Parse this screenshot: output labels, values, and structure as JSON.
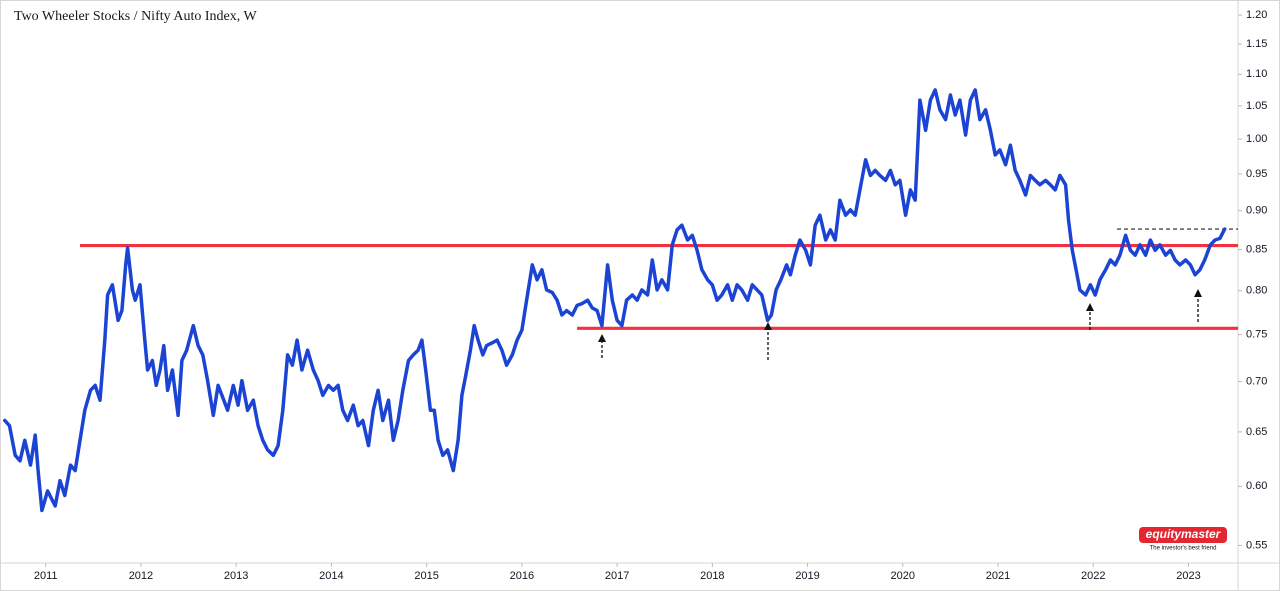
{
  "chart_data": {
    "type": "line",
    "title": "Two Wheeler Stocks / Nifty Auto Index, W",
    "log_scale": true,
    "grid": false,
    "color": "#1c44d4",
    "xlim": [
      2010.52,
      2023.52
    ],
    "ylim": [
      0.536,
      1.227
    ],
    "xticks": [
      2011,
      2012,
      2013,
      2014,
      2015,
      2016,
      2017,
      2018,
      2019,
      2020,
      2021,
      2022,
      2023
    ],
    "yticks": [
      0.55,
      {
        "value": 0.6,
        "label": "0.60"
      },
      0.65,
      {
        "value": 0.7,
        "label": "0.70"
      },
      0.75,
      {
        "value": 0.8,
        "label": "0.80"
      },
      0.85,
      {
        "value": 0.9,
        "label": "0.90"
      },
      0.95,
      {
        "value": 1.0,
        "label": "1.00"
      },
      1.05,
      {
        "value": 1.1,
        "label": "1.10"
      },
      1.15,
      {
        "value": 1.2,
        "label": "1.20"
      }
    ],
    "x": [
      2010.57,
      2010.62,
      2010.68,
      2010.73,
      2010.78,
      2010.84,
      2010.89,
      2010.92,
      2010.96,
      2011.02,
      2011.1,
      2011.15,
      2011.2,
      2011.26,
      2011.31,
      2011.36,
      2011.41,
      2011.47,
      2011.52,
      2011.57,
      2011.62,
      2011.65,
      2011.7,
      2011.76,
      2011.8,
      2011.84,
      2011.86,
      2011.91,
      2011.94,
      2011.99,
      2012.04,
      2012.07,
      2012.12,
      2012.16,
      2012.2,
      2012.24,
      2012.28,
      2012.33,
      2012.39,
      2012.43,
      2012.48,
      2012.55,
      2012.6,
      2012.65,
      2012.7,
      2012.76,
      2012.81,
      2012.85,
      2012.91,
      2012.97,
      2013.02,
      2013.06,
      2013.12,
      2013.18,
      2013.23,
      2013.28,
      2013.33,
      2013.39,
      2013.44,
      2013.49,
      2013.54,
      2013.59,
      2013.64,
      2013.69,
      2013.75,
      2013.81,
      2013.86,
      2013.91,
      2013.97,
      2014.02,
      2014.07,
      2014.12,
      2014.17,
      2014.23,
      2014.28,
      2014.33,
      2014.39,
      2014.44,
      2014.49,
      2014.54,
      2014.6,
      2014.65,
      2014.7,
      2014.75,
      2014.81,
      2014.86,
      2014.91,
      2014.95,
      2014.99,
      2015.04,
      2015.08,
      2015.12,
      2015.17,
      2015.22,
      2015.28,
      2015.33,
      2015.37,
      2015.41,
      2015.46,
      2015.5,
      2015.54,
      2015.59,
      2015.63,
      2015.69,
      2015.74,
      2015.79,
      2015.84,
      2015.9,
      2015.95,
      2016.0,
      2016.05,
      2016.11,
      2016.16,
      2016.21,
      2016.26,
      2016.32,
      2016.37,
      2016.42,
      2016.47,
      2016.53,
      2016.58,
      2016.63,
      2016.69,
      2016.74,
      2016.79,
      2016.84,
      2016.9,
      2016.95,
      2017.0,
      2017.05,
      2017.1,
      2017.16,
      2017.21,
      2017.26,
      2017.32,
      2017.37,
      2017.42,
      2017.47,
      2017.53,
      2017.58,
      2017.63,
      2017.68,
      2017.74,
      2017.79,
      2017.84,
      2017.89,
      2017.95,
      2018.0,
      2018.05,
      2018.1,
      2018.16,
      2018.21,
      2018.26,
      2018.31,
      2018.37,
      2018.42,
      2018.47,
      2018.52,
      2018.58,
      2018.62,
      2018.67,
      2018.72,
      2018.78,
      2018.82,
      2018.87,
      2018.92,
      2018.98,
      2019.03,
      2019.08,
      2019.13,
      2019.19,
      2019.24,
      2019.29,
      2019.34,
      2019.4,
      2019.45,
      2019.5,
      2019.55,
      2019.61,
      2019.66,
      2019.71,
      2019.76,
      2019.82,
      2019.87,
      2019.92,
      2019.97,
      2020.03,
      2020.08,
      2020.13,
      2020.18,
      2020.24,
      2020.29,
      2020.34,
      2020.39,
      2020.45,
      2020.5,
      2020.55,
      2020.6,
      2020.66,
      2020.71,
      2020.76,
      2020.81,
      2020.87,
      2020.92,
      2020.97,
      2021.02,
      2021.08,
      2021.13,
      2021.18,
      2021.23,
      2021.29,
      2021.34,
      2021.39,
      2021.44,
      2021.5,
      2021.55,
      2021.6,
      2021.65,
      2021.71,
      2021.74,
      2021.78,
      2021.82,
      2021.86,
      2021.92,
      2021.97,
      2022.02,
      2022.07,
      2022.13,
      2022.18,
      2022.23,
      2022.28,
      2022.34,
      2022.39,
      2022.44,
      2022.49,
      2022.55,
      2022.6,
      2022.65,
      2022.7,
      2022.76,
      2022.81,
      2022.86,
      2022.91,
      2022.97,
      2023.02,
      2023.07,
      2023.12,
      2023.17,
      2023.23,
      2023.28,
      2023.33,
      2023.38
    ],
    "values": [
      0.661,
      0.656,
      0.628,
      0.623,
      0.642,
      0.619,
      0.647,
      0.614,
      0.579,
      0.596,
      0.583,
      0.605,
      0.592,
      0.619,
      0.614,
      0.642,
      0.671,
      0.691,
      0.696,
      0.681,
      0.744,
      0.795,
      0.807,
      0.766,
      0.777,
      0.831,
      0.852,
      0.801,
      0.789,
      0.807,
      0.744,
      0.712,
      0.722,
      0.696,
      0.712,
      0.738,
      0.691,
      0.712,
      0.666,
      0.722,
      0.733,
      0.76,
      0.738,
      0.728,
      0.701,
      0.666,
      0.696,
      0.686,
      0.671,
      0.696,
      0.676,
      0.701,
      0.671,
      0.681,
      0.656,
      0.642,
      0.633,
      0.628,
      0.637,
      0.671,
      0.728,
      0.717,
      0.744,
      0.712,
      0.733,
      0.712,
      0.701,
      0.686,
      0.696,
      0.691,
      0.696,
      0.671,
      0.661,
      0.676,
      0.656,
      0.661,
      0.637,
      0.671,
      0.691,
      0.661,
      0.681,
      0.642,
      0.661,
      0.691,
      0.722,
      0.728,
      0.733,
      0.744,
      0.712,
      0.671,
      0.671,
      0.642,
      0.628,
      0.633,
      0.614,
      0.642,
      0.686,
      0.706,
      0.733,
      0.76,
      0.744,
      0.728,
      0.738,
      0.741,
      0.744,
      0.733,
      0.717,
      0.728,
      0.744,
      0.755,
      0.789,
      0.831,
      0.813,
      0.825,
      0.801,
      0.798,
      0.789,
      0.772,
      0.777,
      0.772,
      0.783,
      0.785,
      0.789,
      0.78,
      0.777,
      0.76,
      0.831,
      0.789,
      0.766,
      0.76,
      0.789,
      0.795,
      0.789,
      0.801,
      0.795,
      0.837,
      0.801,
      0.813,
      0.801,
      0.856,
      0.875,
      0.881,
      0.862,
      0.868,
      0.849,
      0.825,
      0.813,
      0.807,
      0.789,
      0.795,
      0.807,
      0.789,
      0.807,
      0.801,
      0.789,
      0.807,
      0.801,
      0.795,
      0.766,
      0.772,
      0.801,
      0.813,
      0.831,
      0.819,
      0.843,
      0.862,
      0.849,
      0.831,
      0.881,
      0.894,
      0.862,
      0.875,
      0.862,
      0.914,
      0.894,
      0.901,
      0.894,
      0.928,
      0.97,
      0.948,
      0.955,
      0.948,
      0.941,
      0.955,
      0.935,
      0.941,
      0.894,
      0.928,
      0.914,
      1.059,
      1.013,
      1.059,
      1.075,
      1.044,
      1.029,
      1.067,
      1.036,
      1.059,
      1.006,
      1.059,
      1.075,
      1.029,
      1.044,
      1.013,
      0.977,
      0.984,
      0.963,
      0.991,
      0.955,
      0.941,
      0.921,
      0.948,
      0.941,
      0.935,
      0.941,
      0.935,
      0.928,
      0.948,
      0.935,
      0.888,
      0.849,
      0.825,
      0.801,
      0.795,
      0.807,
      0.795,
      0.813,
      0.825,
      0.837,
      0.831,
      0.843,
      0.868,
      0.849,
      0.843,
      0.856,
      0.843,
      0.862,
      0.849,
      0.856,
      0.843,
      0.849,
      0.837,
      0.831,
      0.837,
      0.831,
      0.819,
      0.825,
      0.837,
      0.856,
      0.862,
      0.864,
      0.876
    ],
    "reference_lines": [
      {
        "value": 0.855,
        "from": 2011.36,
        "color": "#f2303f",
        "style": "solid"
      },
      {
        "value": 0.757,
        "from": 2016.58,
        "color": "#f2303f",
        "style": "solid"
      },
      {
        "value": 0.876,
        "from": 2022.25,
        "color": "#222222",
        "style": "dashed"
      }
    ],
    "watermark": {
      "brand": "equitymaster",
      "tagline": "The investor's best friend"
    }
  }
}
